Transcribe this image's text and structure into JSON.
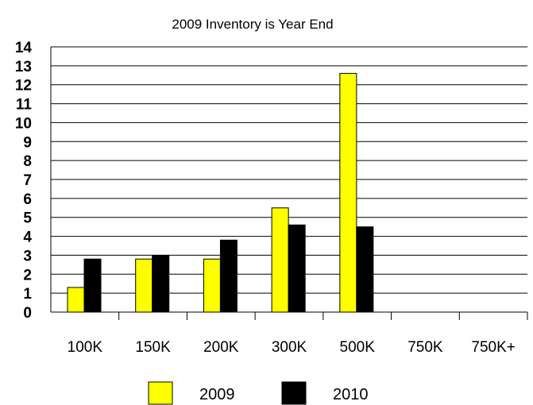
{
  "chart_data": {
    "type": "bar",
    "title": "2009 Inventory is Year End",
    "xlabel": "",
    "ylabel": "",
    "ylim": [
      0,
      14
    ],
    "yticks": [
      "0",
      "1",
      "2",
      "3",
      "4",
      "5",
      "6",
      "7",
      "8",
      "9",
      "10",
      "11",
      "12",
      "13",
      "14"
    ],
    "categories": [
      "100K",
      "150K",
      "200K",
      "300K",
      "500K",
      "750K",
      "750K+"
    ],
    "grid": true,
    "legend_position": "bottom",
    "series": [
      {
        "name": "2009",
        "color": "#ffff00",
        "values": [
          1.3,
          2.8,
          2.8,
          5.5,
          12.6,
          0,
          0
        ]
      },
      {
        "name": "2010",
        "color": "#000000",
        "values": [
          2.8,
          3.0,
          3.8,
          4.6,
          4.5,
          0,
          0
        ]
      }
    ]
  }
}
